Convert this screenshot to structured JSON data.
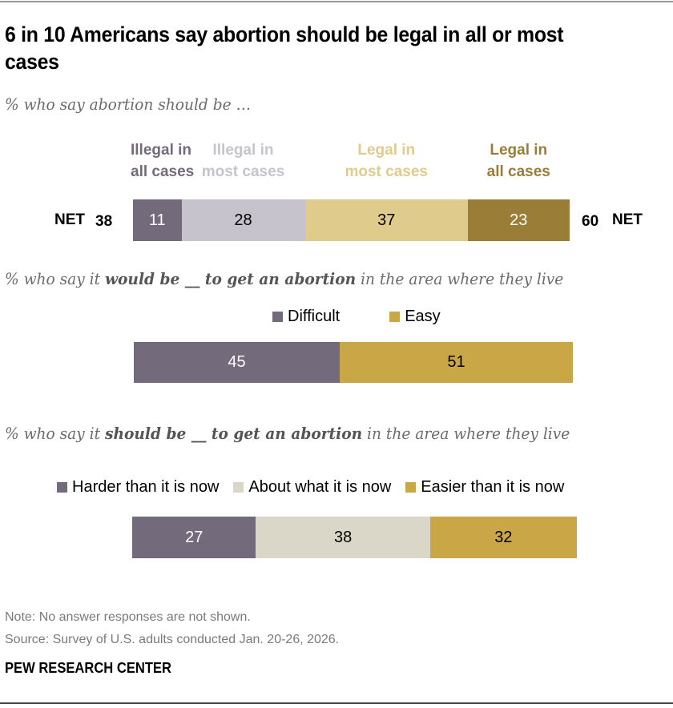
{
  "title": "6 in 10 Americans say abortion should be legal in all or most cases",
  "brand": "PEW RESEARCH CENTER",
  "note": "Note: No answer responses are not shown.",
  "source": "Source: Survey of U.S. adults conducted Jan. 20-26, 2026.",
  "subtitles": {
    "s1": "% who say abortion should be …",
    "s2": {
      "pre": "% who say it ",
      "bold": "would be __ to get an abortion",
      "post": " in the area where they live"
    },
    "s3": {
      "pre": "% who say it ",
      "bold": "should be __ to get an abortion",
      "post": " in the area where they live"
    }
  },
  "chart_data": [
    {
      "type": "bar",
      "orientation": "horizontal-stacked",
      "title": "% who say abortion should be …",
      "categories": [
        "Illegal in all cases",
        "Illegal in most cases",
        "Legal in most cases",
        "Legal in all cases"
      ],
      "category_lines": [
        [
          "Illegal in",
          "all cases"
        ],
        [
          "Illegal in",
          "most cases"
        ],
        [
          "Legal in",
          "most cases"
        ],
        [
          "Legal in",
          "all cases"
        ]
      ],
      "values": [
        11,
        28,
        37,
        23
      ],
      "colors": [
        "#736a7c",
        "#c7c3cc",
        "#dfcb8c",
        "#9a7e37"
      ],
      "label_text_colors": [
        "#ffffff",
        "#000000",
        "#000000",
        "#ffffff"
      ],
      "header_colors": [
        "#736a7c",
        "#c7c3cc",
        "#dfcb8c",
        "#9a7e37"
      ],
      "net_left": {
        "label": "NET",
        "value": 38
      },
      "net_right": {
        "label": "NET",
        "value": 60
      }
    },
    {
      "type": "bar",
      "orientation": "horizontal-stacked",
      "title": "% who say it would be __ to get an abortion in the area where they live",
      "categories": [
        "Difficult",
        "Easy"
      ],
      "values": [
        45,
        51
      ],
      "colors": [
        "#736a7c",
        "#c9a746"
      ],
      "label_text_colors": [
        "#ffffff",
        "#000000"
      ],
      "legend": [
        "Difficult",
        "Easy"
      ]
    },
    {
      "type": "bar",
      "orientation": "horizontal-stacked",
      "title": "% who say it should be __ to get an abortion in the area where they live",
      "categories": [
        "Harder than it is now",
        "About what it is now",
        "Easier than it is now"
      ],
      "values": [
        27,
        38,
        32
      ],
      "colors": [
        "#736a7c",
        "#dbd7c8",
        "#c9a746"
      ],
      "label_text_colors": [
        "#ffffff",
        "#000000",
        "#000000"
      ],
      "legend": [
        "Harder than it is now",
        "About what it is now",
        "Easier than it is now"
      ]
    }
  ]
}
